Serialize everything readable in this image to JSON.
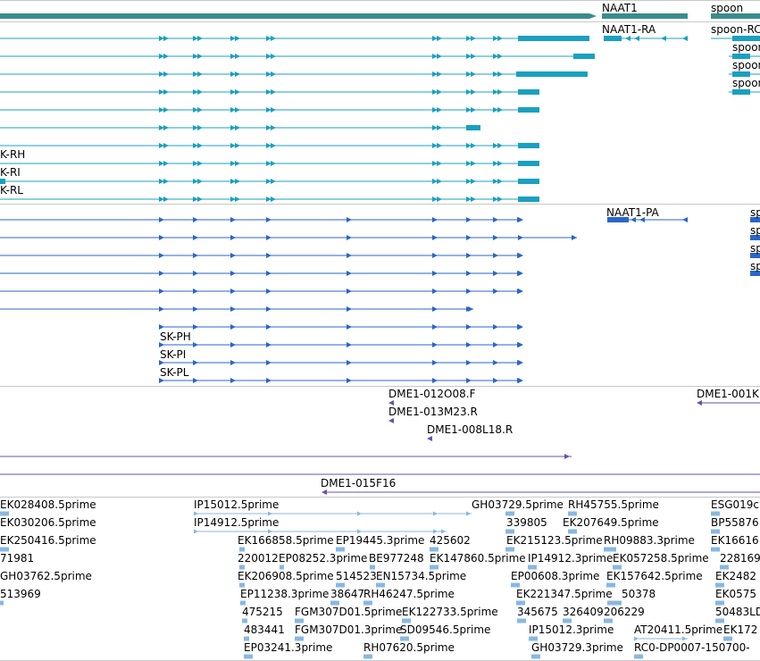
{
  "colors": {
    "gene": "#3a8c8c",
    "transcript_a": "#1aa0c0",
    "transcript_b": "#2a66c8",
    "clone": "#6a4fb0",
    "est": "#88b8e0",
    "divider": "#c8c8c8",
    "text": "#000000"
  },
  "gene_track": {
    "genes": [
      "NAAT1",
      "spoon"
    ]
  },
  "transcripts_track_a": {
    "labels": [
      "NAAT1-RA",
      "spoon-RC",
      "spoon",
      "spoon",
      "spoon",
      "K-RH",
      "K-RI",
      "K-RL"
    ]
  },
  "transcripts_track_b": {
    "labels": [
      "NAAT1-PA",
      "sp",
      "sp",
      "sp",
      "sp",
      "SK-PH",
      "SK-PI",
      "SK-PL"
    ]
  },
  "clone_track": {
    "labels": [
      "DME1-012O08.F",
      "DME1-001K",
      "DME1-013M23.R",
      "DME1-008L18.R",
      "DME1-015F16"
    ]
  },
  "est_track": {
    "labels": [
      "EK028408.5prime",
      "IP15012.5prime",
      "GH03729.5prime",
      "RH45755.5prime",
      "ESG019c.",
      "EK030206.5prime",
      "IP14912.5prime",
      "339805",
      "EK207649.5prime",
      "BP55876",
      "EK250416.5prime",
      "EK166858.5prime",
      "EP19445.3prime",
      "425602",
      "EK215123.5prime",
      "RH09883.3prime",
      "EK16616",
      "71981",
      "220012",
      "EP08252.3prime",
      "BE977248",
      "EK147860.5prime",
      "IP14912.3prime",
      "EK057258.5prime",
      "228169",
      "GH03762.5prime",
      "EK206908.5prime",
      "514523",
      "EN15734.5prime",
      "EP00608.3prime",
      "EK157642.5prime",
      "EK2482",
      "513969",
      "EP11238.3prime",
      "38647",
      "RH46247.5prime",
      "EK221347.5prime",
      "50378",
      "EK0575",
      "475215",
      "FGM307D01.5prime",
      "EK122733.5prime",
      "345675",
      "326409",
      "206229",
      "50483LD",
      "483441",
      "FGM307D01.3prime",
      "SD09546.5prime",
      "IP15012.3prime",
      "AT20411.5prime",
      "EK172",
      "EP03241.3prime",
      "RH07620.5prime",
      "GH03729.3prime",
      "RC0-DP0007-150700-"
    ]
  }
}
